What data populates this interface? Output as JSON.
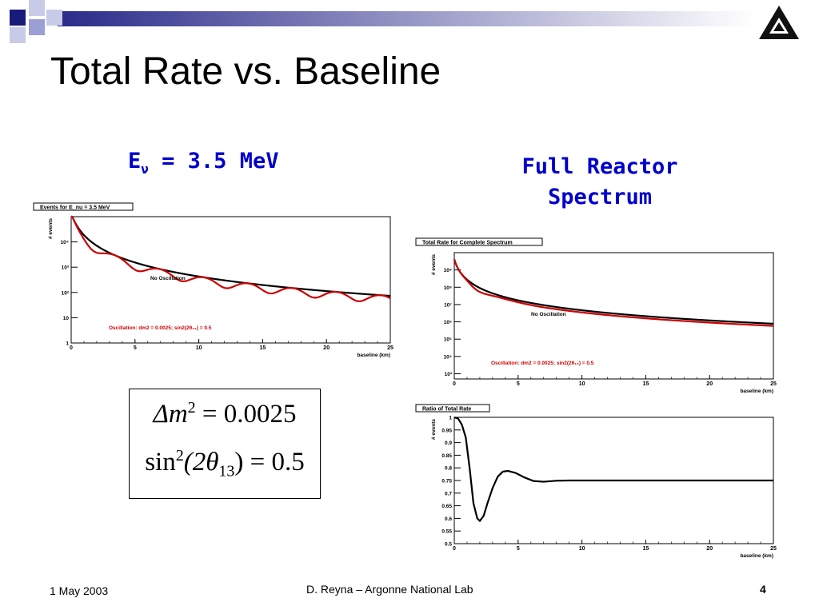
{
  "slide": {
    "title": "Total Rate vs. Baseline",
    "left_heading": {
      "main": "E",
      "subscript": "ν",
      "rest": " = 3.5 MeV"
    },
    "right_heading": [
      "Full Reactor",
      "Spectrum"
    ],
    "equations": {
      "line1": {
        "lhs": "Δm",
        "exp": "2",
        "rhs": " = 0.0025"
      },
      "line2": {
        "func": "sin",
        "exp": "2",
        "arg_open": "(2θ",
        "sub": "13",
        "arg_close": ")",
        "rhs": " = 0.5"
      }
    },
    "footer": {
      "date": "1 May 2003",
      "center": "D. Reyna – Argonne National Lab",
      "page": "4"
    },
    "logo_icon": "argonne-logo-icon"
  },
  "chart_data": [
    {
      "type": "line",
      "title": "Events for E_nu = 3.5 MeV",
      "xlabel": "baseline (km)",
      "ylabel": "# events",
      "xlim": [
        0,
        25
      ],
      "ylim": [
        1,
        100000
      ],
      "yscale": "log",
      "x_ticks": [
        "0",
        "5",
        "10",
        "15",
        "20",
        "25"
      ],
      "y_ticks": [
        {
          "value": 1,
          "label": "1"
        },
        {
          "value": 10,
          "label": "10"
        },
        {
          "value": 100,
          "label": "10²"
        },
        {
          "value": 1000,
          "label": "10³"
        },
        {
          "value": 10000,
          "label": "10⁴"
        }
      ],
      "series": [
        {
          "name": "No Oscillation",
          "color": "#000000",
          "model": "no_osc",
          "L0": 0.6,
          "norm": 48000
        },
        {
          "name": "Oscillation: dm2 = 0.0025; sin2(2θ₁₃) = 0.5",
          "color": "#cc0000",
          "model": "osc_mono",
          "L0": 0.6,
          "norm": 48000,
          "dm2": 0.0025,
          "sin2": 0.5,
          "E": 3.5
        }
      ]
    },
    {
      "type": "line",
      "title": "Total Rate for Complete Spectrum",
      "xlabel": "baseline (km)",
      "ylabel": "# events",
      "xlim": [
        0,
        25
      ],
      "ylim": [
        500,
        10000000000
      ],
      "yscale": "log",
      "x_ticks": [
        "0",
        "5",
        "10",
        "15",
        "20",
        "25"
      ],
      "y_ticks": [
        {
          "value": 1000,
          "label": "10³"
        },
        {
          "value": 10000,
          "label": "10⁴"
        },
        {
          "value": 100000,
          "label": "10⁵"
        },
        {
          "value": 1000000,
          "label": "10⁶"
        },
        {
          "value": 10000000,
          "label": "10⁷"
        },
        {
          "value": 100000000,
          "label": "10⁸"
        },
        {
          "value": 1000000000,
          "label": "10⁹"
        }
      ],
      "series": [
        {
          "name": "No Oscillation",
          "color": "#000000",
          "model": "no_osc",
          "L0": 0.35,
          "norm": 500000000
        },
        {
          "name": "Oscillation: dm2 = 0.0025; sin2(2θ₁₃) = 0.5",
          "color": "#cc0000",
          "model": "ratio_scaled",
          "L0": 0.35,
          "norm": 500000000
        }
      ]
    },
    {
      "type": "line",
      "title": "Ratio of Total Rate",
      "xlabel": "baseline (km)",
      "ylabel": "# events",
      "xlim": [
        0,
        25
      ],
      "ylim": [
        0.5,
        1
      ],
      "yscale": "linear",
      "x_ticks": [
        "0",
        "5",
        "10",
        "15",
        "20",
        "25"
      ],
      "y_ticks": [
        {
          "value": 0.5,
          "label": "0.5"
        },
        {
          "value": 0.55,
          "label": "0.55"
        },
        {
          "value": 0.6,
          "label": "0.6"
        },
        {
          "value": 0.65,
          "label": "0.65"
        },
        {
          "value": 0.7,
          "label": "0.7"
        },
        {
          "value": 0.75,
          "label": "0.75"
        },
        {
          "value": 0.8,
          "label": "0.8"
        },
        {
          "value": 0.85,
          "label": "0.85"
        },
        {
          "value": 0.9,
          "label": "0.9"
        },
        {
          "value": 0.95,
          "label": "0.95"
        },
        {
          "value": 1,
          "label": "1"
        }
      ],
      "series": [
        {
          "name": "ratio",
          "color": "#000000",
          "model": "ratio",
          "points": [
            [
              0,
              1
            ],
            [
              0.3,
              0.995
            ],
            [
              0.6,
              0.97
            ],
            [
              0.9,
              0.92
            ],
            [
              1.2,
              0.8
            ],
            [
              1.5,
              0.66
            ],
            [
              1.8,
              0.6
            ],
            [
              2.0,
              0.59
            ],
            [
              2.3,
              0.61
            ],
            [
              2.6,
              0.66
            ],
            [
              3.0,
              0.72
            ],
            [
              3.4,
              0.765
            ],
            [
              3.8,
              0.785
            ],
            [
              4.2,
              0.788
            ],
            [
              4.8,
              0.78
            ],
            [
              5.5,
              0.762
            ],
            [
              6.2,
              0.748
            ],
            [
              7.0,
              0.745
            ],
            [
              8.0,
              0.749
            ],
            [
              9.0,
              0.75
            ],
            [
              10,
              0.75
            ],
            [
              12,
              0.75
            ],
            [
              15,
              0.75
            ],
            [
              20,
              0.75
            ],
            [
              25,
              0.75
            ]
          ]
        }
      ]
    }
  ]
}
